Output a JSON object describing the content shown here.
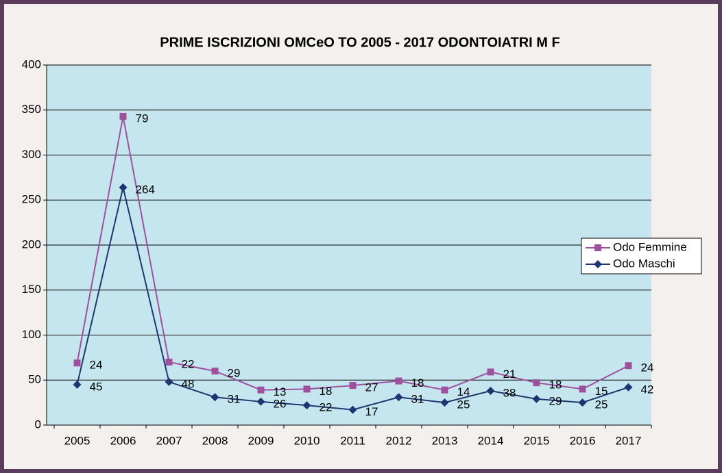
{
  "chart_data": {
    "type": "line",
    "stacked": true,
    "title": "PRIME ISCRIZIONI OMCeO TO 2005 - 2017 ODONTOIATRI   M F",
    "categories": [
      "2005",
      "2006",
      "2007",
      "2008",
      "2009",
      "2010",
      "2011",
      "2012",
      "2013",
      "2014",
      "2015",
      "2016",
      "2017"
    ],
    "series": [
      {
        "name": "Odo Femmine",
        "color": "#9e4f9e",
        "marker": "square",
        "values": [
          24,
          79,
          22,
          29,
          13,
          18,
          27,
          18,
          14,
          21,
          18,
          15,
          24
        ]
      },
      {
        "name": "Odo Maschi",
        "color": "#1f3570",
        "marker": "diamond",
        "values": [
          45,
          264,
          48,
          31,
          26,
          22,
          17,
          31,
          25,
          38,
          29,
          25,
          42
        ]
      }
    ],
    "ylim": [
      0,
      400
    ],
    "yticks": [
      0,
      50,
      100,
      150,
      200,
      250,
      300,
      350,
      400
    ],
    "grid": true,
    "legend": "right"
  }
}
